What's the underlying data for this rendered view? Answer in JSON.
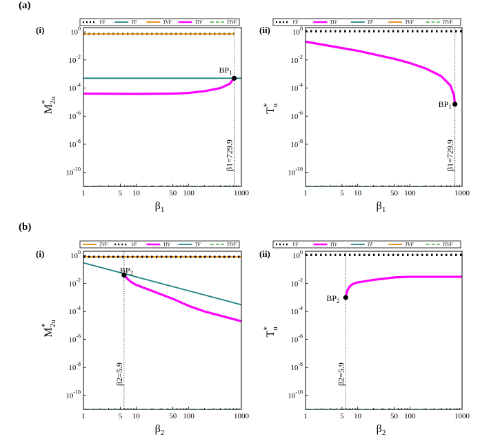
{
  "colors": {
    "VF": "#000000",
    "TF": "#1b8080",
    "TVF": "#e8961e",
    "TIV": "#ff00ff",
    "TIVF": "#33aa33"
  },
  "chart_data": [
    {
      "id": "a-i",
      "row_label": "(a)",
      "panel_label": "(i)",
      "type": "line",
      "log_x": true,
      "log_y": true,
      "xlim": [
        1,
        1000
      ],
      "ylim": [
        1e-11,
        2
      ],
      "xlabel": "β1",
      "ylabel": "M*2u",
      "x_ticks": [
        1,
        5,
        10,
        50,
        100,
        1000
      ],
      "x_tick_labels": [
        "1",
        "5",
        "10",
        "50",
        "100",
        "1000"
      ],
      "y_ticks": [
        1,
        0.01,
        0.0001,
        1e-06,
        1e-08,
        1e-10
      ],
      "y_tick_labels": [
        {
          "base": "10",
          "exp": "0"
        },
        {
          "base": "10",
          "exp": "-2"
        },
        {
          "base": "10",
          "exp": "-4"
        },
        {
          "base": "10",
          "exp": "-6"
        },
        {
          "base": "10",
          "exp": "-8"
        },
        {
          "base": "10",
          "exp": "-10"
        }
      ],
      "legend": [
        "VF",
        "TF",
        "TVF",
        "TIV",
        "TIVF"
      ],
      "series": [
        {
          "name": "VF",
          "x": [
            1,
            729.9
          ],
          "y": [
            0.7,
            0.7
          ]
        },
        {
          "name": "TVF",
          "x": [
            1,
            729.9
          ],
          "y": [
            0.7,
            0.7
          ]
        },
        {
          "name": "TF",
          "x": [
            1,
            1000
          ],
          "y": [
            0.0005,
            0.0005
          ]
        },
        {
          "name": "TIV",
          "x": [
            1,
            10,
            50,
            100,
            200,
            400,
            600,
            729.9
          ],
          "y": [
            4e-05,
            3.8e-05,
            4e-05,
            4.5e-05,
            6e-05,
            0.0001,
            0.0002,
            0.0005
          ]
        },
        {
          "name": "TIVF",
          "x": [
            1,
            1000
          ],
          "y": [
            1e-11,
            1e-11
          ]
        }
      ],
      "marker": {
        "label": "BP",
        "sub": "1",
        "x": 729.9,
        "y": 0.0005
      },
      "vline": {
        "x": 729.9,
        "text": "β1=729.9"
      }
    },
    {
      "id": "a-ii",
      "row_label": "",
      "panel_label": "(ii)",
      "type": "line",
      "log_x": true,
      "log_y": true,
      "xlim": [
        1,
        1000
      ],
      "ylim": [
        1e-11,
        2
      ],
      "xlabel": "β1",
      "ylabel": "T*u",
      "x_ticks": [
        1,
        5,
        10,
        50,
        100,
        1000
      ],
      "x_tick_labels": [
        "1",
        "5",
        "10",
        "50",
        "100",
        "1000"
      ],
      "y_ticks": [
        1,
        0.01,
        0.0001,
        1e-06,
        1e-08,
        1e-10
      ],
      "y_tick_labels": [
        {
          "base": "10",
          "exp": "0"
        },
        {
          "base": "10",
          "exp": "-2"
        },
        {
          "base": "10",
          "exp": "-4"
        },
        {
          "base": "10",
          "exp": "-6"
        },
        {
          "base": "10",
          "exp": "-8"
        },
        {
          "base": "10",
          "exp": "-10"
        }
      ],
      "legend": [
        "VF",
        "TIV",
        "TF",
        "TVF",
        "TIVF"
      ],
      "series": [
        {
          "name": "VF",
          "x": [
            1,
            1000
          ],
          "y": [
            1.1,
            1.1
          ]
        },
        {
          "name": "TIV",
          "x": [
            1,
            5,
            10,
            50,
            100,
            200,
            400,
            600,
            700,
            729.9
          ],
          "y": [
            0.2,
            0.07,
            0.045,
            0.012,
            0.006,
            0.0025,
            0.0007,
            0.00015,
            3e-05,
            7e-06
          ]
        },
        {
          "name": "TIVF",
          "x": [
            1,
            1000
          ],
          "y": [
            1e-11,
            1e-11
          ]
        }
      ],
      "marker": {
        "label": "BP",
        "sub": "1",
        "x": 729.9,
        "y": 7e-06
      },
      "vline": {
        "x": 729.9,
        "text": "β1=729.9"
      }
    },
    {
      "id": "b-i",
      "row_label": "(b)",
      "panel_label": "(i)",
      "type": "line",
      "log_x": true,
      "log_y": true,
      "xlim": [
        1,
        1000
      ],
      "ylim": [
        1e-11,
        2
      ],
      "xlabel": "β2",
      "ylabel": "M*2u",
      "x_ticks": [
        1,
        5,
        10,
        50,
        100,
        1000
      ],
      "x_tick_labels": [
        "1",
        "5",
        "10",
        "50",
        "100",
        "1000"
      ],
      "y_ticks": [
        1,
        0.01,
        0.0001,
        1e-06,
        1e-08,
        1e-10
      ],
      "y_tick_labels": [
        {
          "base": "10",
          "exp": "0"
        },
        {
          "base": "10",
          "exp": "-2"
        },
        {
          "base": "10",
          "exp": "-4"
        },
        {
          "base": "10",
          "exp": "-6"
        },
        {
          "base": "10",
          "exp": "-8"
        },
        {
          "base": "10",
          "exp": "-10"
        }
      ],
      "legend": [
        "TVF",
        "VF",
        "TIV",
        "TF",
        "TIVF"
      ],
      "series": [
        {
          "name": "TVF",
          "x": [
            1,
            1000
          ],
          "y": [
            0.8,
            0.8
          ]
        },
        {
          "name": "VF",
          "x": [
            1,
            1000
          ],
          "y": [
            0.8,
            0.8
          ]
        },
        {
          "name": "TF",
          "x": [
            1,
            1000
          ],
          "y": [
            0.3,
            0.0003
          ]
        },
        {
          "name": "TIV",
          "x": [
            5.9,
            7,
            8,
            10,
            20,
            50,
            100,
            200,
            500,
            1000
          ],
          "y": [
            0.04,
            0.02,
            0.013,
            0.008,
            0.003,
            0.0008,
            0.00025,
            0.0001,
            4e-05,
            2e-05
          ]
        },
        {
          "name": "TIVF",
          "x": [
            1,
            1000
          ],
          "y": [
            1e-11,
            1e-11
          ]
        }
      ],
      "marker": {
        "label": "BP",
        "sub": "2",
        "x": 5.9,
        "y": 0.04
      },
      "vline": {
        "x": 5.9,
        "text": "β2=5.9"
      }
    },
    {
      "id": "b-ii",
      "row_label": "",
      "panel_label": "(ii)",
      "type": "line",
      "log_x": true,
      "log_y": true,
      "xlim": [
        1,
        1000
      ],
      "ylim": [
        1e-11,
        2
      ],
      "xlabel": "β2",
      "ylabel": "T*u",
      "x_ticks": [
        1,
        5,
        10,
        50,
        100,
        1000
      ],
      "x_tick_labels": [
        "1",
        "5",
        "10",
        "50",
        "100",
        "1000"
      ],
      "y_ticks": [
        1,
        0.01,
        0.0001,
        1e-06,
        1e-08,
        1e-10
      ],
      "y_tick_labels": [
        {
          "base": "10",
          "exp": "0"
        },
        {
          "base": "10",
          "exp": "-2"
        },
        {
          "base": "10",
          "exp": "-4"
        },
        {
          "base": "10",
          "exp": "-6"
        },
        {
          "base": "10",
          "exp": "-8"
        },
        {
          "base": "10",
          "exp": "-10"
        }
      ],
      "legend": [
        "VF",
        "TIV",
        "TF",
        "TVF",
        "TIVF"
      ],
      "series": [
        {
          "name": "VF",
          "x": [
            1,
            1000
          ],
          "y": [
            1.1,
            1.1
          ]
        },
        {
          "name": "TIV",
          "x": [
            5.9,
            6.3,
            7,
            8,
            10,
            20,
            50,
            100,
            300,
            1000
          ],
          "y": [
            0.001,
            0.003,
            0.006,
            0.009,
            0.012,
            0.018,
            0.027,
            0.03,
            0.03,
            0.03
          ]
        },
        {
          "name": "TIVF",
          "x": [
            1,
            1000
          ],
          "y": [
            1e-11,
            1e-11
          ]
        }
      ],
      "marker": {
        "label": "BP",
        "sub": "2",
        "x": 5.9,
        "y": 0.001
      },
      "vline": {
        "x": 5.9,
        "text": "β2=5.9"
      }
    }
  ]
}
